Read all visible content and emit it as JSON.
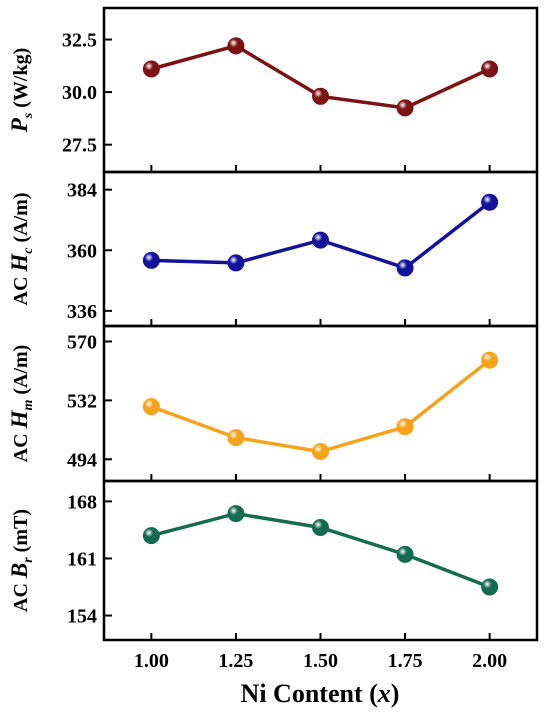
{
  "figure": {
    "xlabel_main": "Ni Content (",
    "xlabel_var": "x",
    "xlabel_close": ")"
  },
  "chart_data": [
    {
      "type": "line",
      "x": [
        1.0,
        1.25,
        1.5,
        1.75,
        2.0
      ],
      "values": [
        31.1,
        32.2,
        29.8,
        29.25,
        31.1
      ],
      "ylim": [
        26.2,
        34.0
      ],
      "yticks": [
        27.5,
        30.0,
        32.5
      ],
      "ytick_labels": [
        "27.5",
        "30.0",
        "32.5"
      ],
      "ylabel": {
        "pre": "",
        "sym": "P",
        "sub": "s",
        "unit": " (W/kg)"
      },
      "color": "#7d1212"
    },
    {
      "type": "line",
      "x": [
        1.0,
        1.25,
        1.5,
        1.75,
        2.0
      ],
      "values": [
        356,
        355,
        364,
        353,
        379
      ],
      "ylim": [
        330,
        391
      ],
      "yticks": [
        336,
        360,
        384
      ],
      "ytick_labels": [
        "336",
        "360",
        "384"
      ],
      "ylabel": {
        "pre": "AC ",
        "sym": "H",
        "sub": "c",
        "unit": " (A/m)"
      },
      "color": "#12129b"
    },
    {
      "type": "line",
      "x": [
        1.0,
        1.25,
        1.5,
        1.75,
        2.0
      ],
      "values": [
        528,
        508,
        499,
        515,
        558
      ],
      "ylim": [
        480,
        580
      ],
      "yticks": [
        494,
        532,
        570
      ],
      "ytick_labels": [
        "494",
        "532",
        "570"
      ],
      "ylabel": {
        "pre": "AC ",
        "sym": "H",
        "sub": "m",
        "unit": " (A/m)"
      },
      "color": "#f7a21b"
    },
    {
      "type": "line",
      "x": [
        1.0,
        1.25,
        1.5,
        1.75,
        2.0
      ],
      "values": [
        163.8,
        166.5,
        164.8,
        161.5,
        157.5
      ],
      "ylim": [
        151,
        170.5
      ],
      "yticks": [
        154,
        161,
        168
      ],
      "ytick_labels": [
        "154",
        "161",
        "168"
      ],
      "ylabel": {
        "pre": "AC ",
        "sym": "B",
        "sub": "r",
        "unit": " (mT)"
      },
      "color": "#156b50"
    }
  ],
  "xaxis": {
    "ticks": [
      1.0,
      1.25,
      1.5,
      1.75,
      2.0
    ],
    "tick_labels": [
      "1.00",
      "1.25",
      "1.50",
      "1.75",
      "2.00"
    ],
    "xlim": [
      0.86,
      2.14
    ]
  }
}
